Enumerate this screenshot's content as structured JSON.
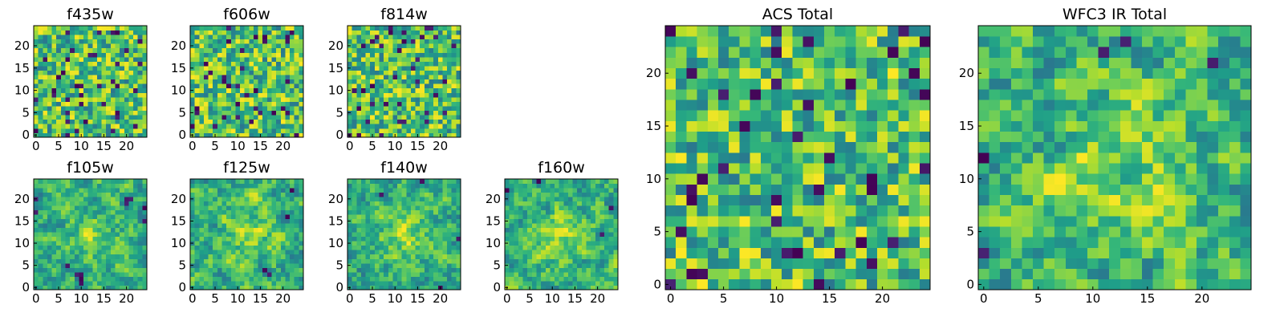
{
  "chart_data": [
    {
      "type": "heatmap",
      "title": "f435w",
      "grid_size": 25,
      "xlim": [
        0,
        24
      ],
      "ylim": [
        0,
        24
      ],
      "xticks": [
        0,
        5,
        10,
        15,
        20
      ],
      "yticks": [
        0,
        5,
        10,
        15,
        20
      ],
      "colormap": "viridis",
      "seed": 11,
      "smooth": 0
    },
    {
      "type": "heatmap",
      "title": "f606w",
      "grid_size": 25,
      "xlim": [
        0,
        24
      ],
      "ylim": [
        0,
        24
      ],
      "xticks": [
        0,
        5,
        10,
        15,
        20
      ],
      "yticks": [
        0,
        5,
        10,
        15,
        20
      ],
      "colormap": "viridis",
      "seed": 23,
      "smooth": 0
    },
    {
      "type": "heatmap",
      "title": "f814w",
      "grid_size": 25,
      "xlim": [
        0,
        24
      ],
      "ylim": [
        0,
        24
      ],
      "xticks": [
        0,
        5,
        10,
        15,
        20
      ],
      "yticks": [
        0,
        5,
        10,
        15,
        20
      ],
      "colormap": "viridis",
      "seed": 37,
      "smooth": 0
    },
    {
      "type": "heatmap",
      "title": "f105w",
      "grid_size": 25,
      "xlim": [
        0,
        24
      ],
      "ylim": [
        0,
        24
      ],
      "xticks": [
        0,
        5,
        10,
        15,
        20
      ],
      "yticks": [
        0,
        5,
        10,
        15,
        20
      ],
      "colormap": "viridis",
      "seed": 41,
      "smooth": 1
    },
    {
      "type": "heatmap",
      "title": "f125w",
      "grid_size": 25,
      "xlim": [
        0,
        24
      ],
      "ylim": [
        0,
        24
      ],
      "xticks": [
        0,
        5,
        10,
        15,
        20
      ],
      "yticks": [
        0,
        5,
        10,
        15,
        20
      ],
      "colormap": "viridis",
      "seed": 53,
      "smooth": 1
    },
    {
      "type": "heatmap",
      "title": "f140w",
      "grid_size": 25,
      "xlim": [
        0,
        24
      ],
      "ylim": [
        0,
        24
      ],
      "xticks": [
        0,
        5,
        10,
        15,
        20
      ],
      "yticks": [
        0,
        5,
        10,
        15,
        20
      ],
      "colormap": "viridis",
      "seed": 67,
      "smooth": 1
    },
    {
      "type": "heatmap",
      "title": "f160w",
      "grid_size": 25,
      "xlim": [
        0,
        24
      ],
      "ylim": [
        0,
        24
      ],
      "xticks": [
        0,
        5,
        10,
        15,
        20
      ],
      "yticks": [
        0,
        5,
        10,
        15,
        20
      ],
      "colormap": "viridis",
      "seed": 79,
      "smooth": 1
    },
    {
      "type": "heatmap",
      "title": "ACS Total",
      "grid_size": 25,
      "xlim": [
        0,
        24
      ],
      "ylim": [
        0,
        24
      ],
      "xticks": [
        0,
        5,
        10,
        15,
        20
      ],
      "yticks": [
        0,
        5,
        10,
        15,
        20
      ],
      "colormap": "viridis",
      "seed": 83,
      "smooth": 0
    },
    {
      "type": "heatmap",
      "title": "WFC3 IR Total",
      "grid_size": 25,
      "xlim": [
        0,
        24
      ],
      "ylim": [
        0,
        24
      ],
      "xticks": [
        0,
        5,
        10,
        15,
        20
      ],
      "yticks": [
        0,
        5,
        10,
        15,
        20
      ],
      "colormap": "viridis",
      "seed": 97,
      "smooth": 1
    }
  ]
}
